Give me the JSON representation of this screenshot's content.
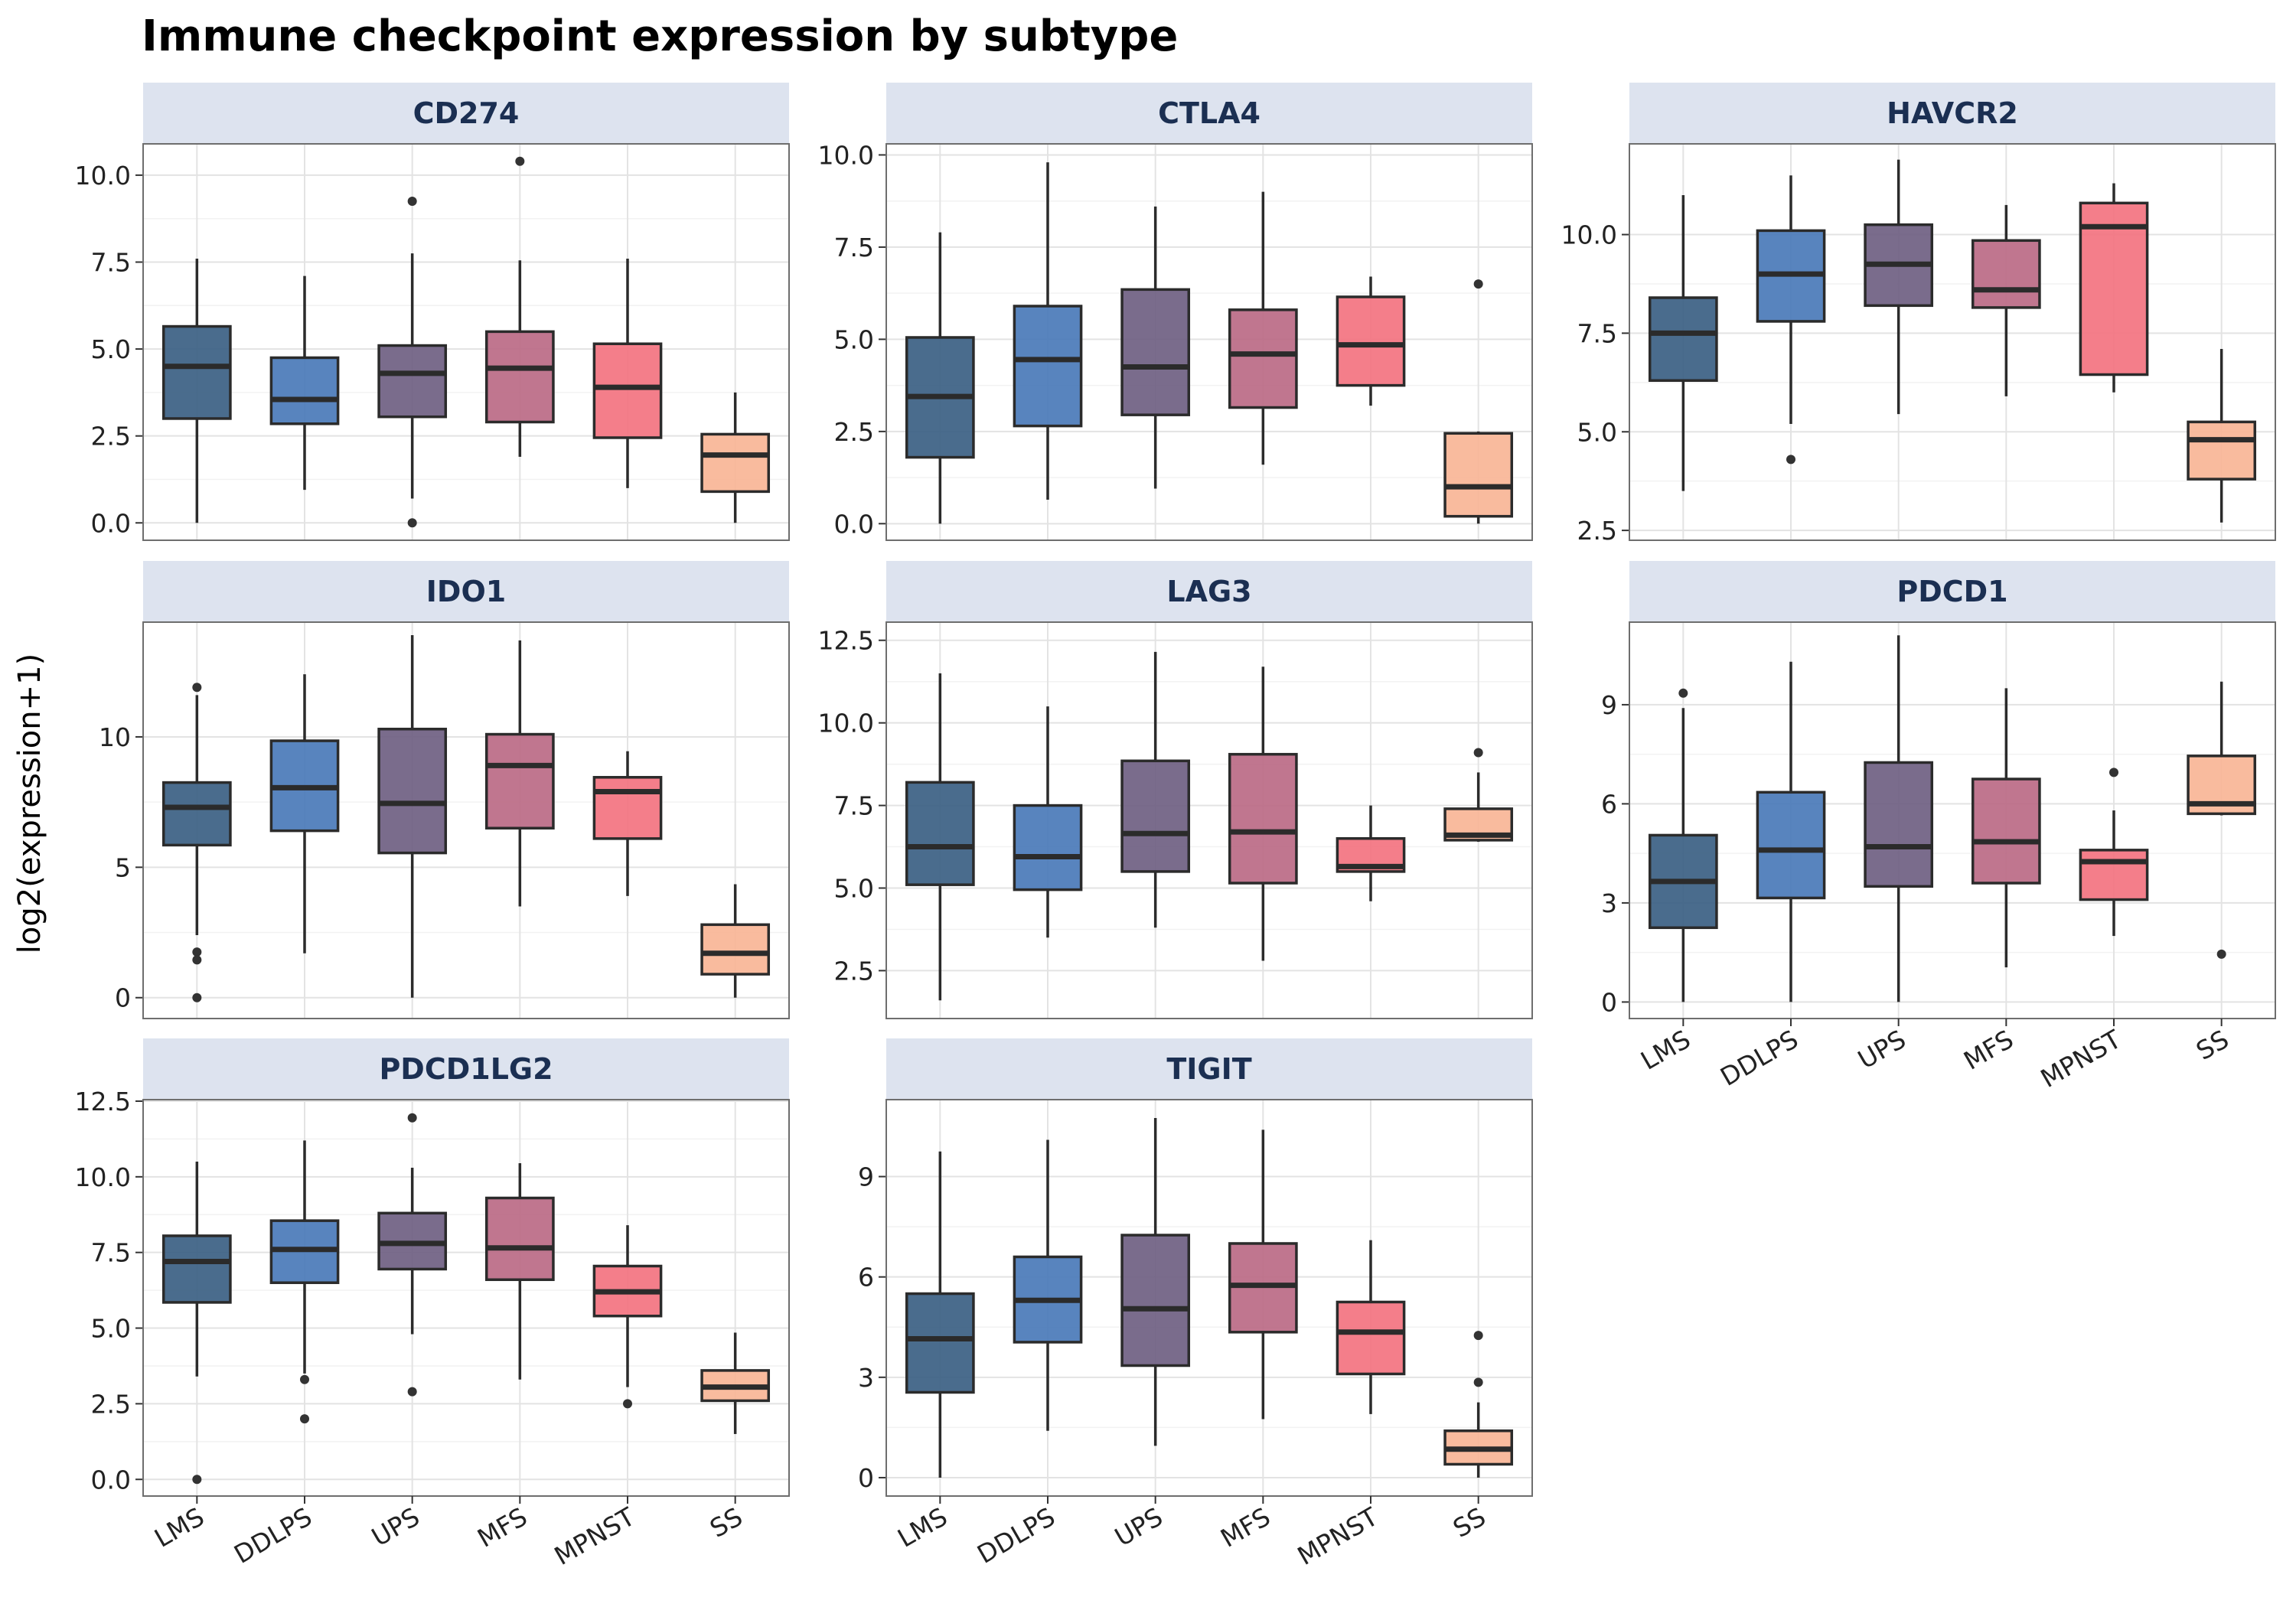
{
  "chart_data": {
    "type": "box",
    "title": "Immune checkpoint expression by subtype",
    "ylabel": "log2(expression+1)",
    "xlabel": "",
    "categories": [
      "LMS",
      "DDLPS",
      "UPS",
      "MFS",
      "MPNST",
      "SS"
    ],
    "colors": [
      "#3b5f83",
      "#4a7ab8",
      "#6f5f82",
      "#bb6a85",
      "#f37380",
      "#f9b596"
    ],
    "strip_fill": "#dde3ef",
    "grid": true,
    "legend": "none",
    "panels": [
      {
        "name": "CD274",
        "ylim": [
          -0.5,
          10.9
        ],
        "yticks": [
          0,
          2.5,
          5,
          7.5,
          10
        ],
        "ytick_labels": [
          "0.0",
          "2.5",
          "5.0",
          "7.5",
          "10.0"
        ],
        "boxes": [
          {
            "category": "LMS",
            "min": 0,
            "q1": 3.0,
            "median": 4.5,
            "q3": 5.65,
            "max": 7.6,
            "outliers": []
          },
          {
            "category": "DDLPS",
            "min": 0.95,
            "q1": 2.85,
            "median": 3.55,
            "q3": 4.75,
            "max": 7.1,
            "outliers": []
          },
          {
            "category": "UPS",
            "min": 0.7,
            "q1": 3.05,
            "median": 4.3,
            "q3": 5.1,
            "max": 7.75,
            "outliers": [
              9.25,
              0.0
            ]
          },
          {
            "category": "MFS",
            "min": 1.9,
            "q1": 2.9,
            "median": 4.45,
            "q3": 5.5,
            "max": 7.55,
            "outliers": [
              10.4
            ]
          },
          {
            "category": "MPNST",
            "min": 1.0,
            "q1": 2.45,
            "median": 3.9,
            "q3": 5.15,
            "max": 7.6,
            "outliers": []
          },
          {
            "category": "SS",
            "min": 0.0,
            "q1": 0.9,
            "median": 1.95,
            "q3": 2.55,
            "max": 3.75,
            "outliers": []
          }
        ]
      },
      {
        "name": "CTLA4",
        "ylim": [
          -0.45,
          10.3
        ],
        "yticks": [
          0,
          2.5,
          5,
          7.5,
          10
        ],
        "ytick_labels": [
          "0.0",
          "2.5",
          "5.0",
          "7.5",
          "10.0"
        ],
        "boxes": [
          {
            "category": "LMS",
            "min": 0.0,
            "q1": 1.8,
            "median": 3.45,
            "q3": 5.05,
            "max": 7.9,
            "outliers": []
          },
          {
            "category": "DDLPS",
            "min": 0.65,
            "q1": 2.65,
            "median": 4.45,
            "q3": 5.9,
            "max": 9.8,
            "outliers": []
          },
          {
            "category": "UPS",
            "min": 0.95,
            "q1": 2.95,
            "median": 4.25,
            "q3": 6.35,
            "max": 8.6,
            "outliers": []
          },
          {
            "category": "MFS",
            "min": 1.6,
            "q1": 3.15,
            "median": 4.6,
            "q3": 5.8,
            "max": 9.0,
            "outliers": []
          },
          {
            "category": "MPNST",
            "min": 3.2,
            "q1": 3.75,
            "median": 4.85,
            "q3": 6.15,
            "max": 6.7,
            "outliers": []
          },
          {
            "category": "SS",
            "min": 0.0,
            "q1": 0.2,
            "median": 1.0,
            "q3": 2.45,
            "max": 2.5,
            "outliers": [
              6.5
            ]
          }
        ]
      },
      {
        "name": "HAVCR2",
        "ylim": [
          2.25,
          12.3
        ],
        "yticks": [
          2.5,
          5,
          7.5,
          10
        ],
        "ytick_labels": [
          "2.5",
          "5.0",
          "7.5",
          "10.0"
        ],
        "boxes": [
          {
            "category": "LMS",
            "min": 3.5,
            "q1": 6.3,
            "median": 7.5,
            "q3": 8.4,
            "max": 11.0,
            "outliers": []
          },
          {
            "category": "DDLPS",
            "min": 5.2,
            "q1": 7.8,
            "median": 9.0,
            "q3": 10.1,
            "max": 11.5,
            "outliers": [
              4.3
            ]
          },
          {
            "category": "UPS",
            "min": 5.45,
            "q1": 8.2,
            "median": 9.25,
            "q3": 10.25,
            "max": 11.9,
            "outliers": []
          },
          {
            "category": "MFS",
            "min": 5.9,
            "q1": 8.15,
            "median": 8.6,
            "q3": 9.85,
            "max": 10.75,
            "outliers": []
          },
          {
            "category": "MPNST",
            "min": 6.0,
            "q1": 6.45,
            "median": 10.2,
            "q3": 10.8,
            "max": 11.3,
            "outliers": []
          },
          {
            "category": "SS",
            "min": 2.7,
            "q1": 3.8,
            "median": 4.8,
            "q3": 5.25,
            "max": 7.1,
            "outliers": []
          }
        ]
      },
      {
        "name": "IDO1",
        "ylim": [
          -0.8,
          14.4
        ],
        "yticks": [
          0,
          5,
          10
        ],
        "ytick_labels": [
          "0",
          "5",
          "10"
        ],
        "boxes": [
          {
            "category": "LMS",
            "min": 2.4,
            "q1": 5.85,
            "median": 7.3,
            "q3": 8.25,
            "max": 11.6,
            "outliers": [
              11.9,
              1.75,
              1.45,
              0.0
            ]
          },
          {
            "category": "DDLPS",
            "min": 1.7,
            "q1": 6.4,
            "median": 8.05,
            "q3": 9.85,
            "max": 12.4,
            "outliers": []
          },
          {
            "category": "UPS",
            "min": 0.0,
            "q1": 5.55,
            "median": 7.45,
            "q3": 10.3,
            "max": 13.9,
            "outliers": []
          },
          {
            "category": "MFS",
            "min": 3.5,
            "q1": 6.5,
            "median": 8.9,
            "q3": 10.1,
            "max": 13.7,
            "outliers": []
          },
          {
            "category": "MPNST",
            "min": 3.9,
            "q1": 6.1,
            "median": 7.9,
            "q3": 8.45,
            "max": 9.45,
            "outliers": []
          },
          {
            "category": "SS",
            "min": 0.0,
            "q1": 0.9,
            "median": 1.7,
            "q3": 2.8,
            "max": 4.35,
            "outliers": []
          }
        ]
      },
      {
        "name": "LAG3",
        "ylim": [
          1.05,
          13.05
        ],
        "yticks": [
          2.5,
          5,
          7.5,
          10,
          12.5
        ],
        "ytick_labels": [
          "2.5",
          "5.0",
          "7.5",
          "10.0",
          "12.5"
        ],
        "boxes": [
          {
            "category": "LMS",
            "min": 1.6,
            "q1": 5.1,
            "median": 6.25,
            "q3": 8.2,
            "max": 11.5,
            "outliers": []
          },
          {
            "category": "DDLPS",
            "min": 3.5,
            "q1": 4.95,
            "median": 5.95,
            "q3": 7.5,
            "max": 10.5,
            "outliers": []
          },
          {
            "category": "UPS",
            "min": 3.8,
            "q1": 5.5,
            "median": 6.65,
            "q3": 8.85,
            "max": 12.15,
            "outliers": []
          },
          {
            "category": "MFS",
            "min": 2.8,
            "q1": 5.15,
            "median": 6.7,
            "q3": 9.05,
            "max": 11.7,
            "outliers": []
          },
          {
            "category": "MPNST",
            "min": 4.6,
            "q1": 5.5,
            "median": 5.65,
            "q3": 6.5,
            "max": 7.5,
            "outliers": []
          },
          {
            "category": "SS",
            "min": 6.4,
            "q1": 6.45,
            "median": 6.6,
            "q3": 7.4,
            "max": 8.5,
            "outliers": [
              9.1
            ]
          }
        ]
      },
      {
        "name": "PDCD1",
        "ylim": [
          -0.5,
          11.5
        ],
        "yticks": [
          0,
          3,
          6,
          9
        ],
        "ytick_labels": [
          "0",
          "3",
          "6",
          "9"
        ],
        "boxes": [
          {
            "category": "LMS",
            "min": 0.0,
            "q1": 2.25,
            "median": 3.65,
            "q3": 5.05,
            "max": 8.9,
            "outliers": [
              9.35
            ]
          },
          {
            "category": "DDLPS",
            "min": 0.0,
            "q1": 3.15,
            "median": 4.6,
            "q3": 6.35,
            "max": 10.3,
            "outliers": []
          },
          {
            "category": "UPS",
            "min": 0.0,
            "q1": 3.5,
            "median": 4.7,
            "q3": 7.25,
            "max": 11.1,
            "outliers": []
          },
          {
            "category": "MFS",
            "min": 1.05,
            "q1": 3.6,
            "median": 4.85,
            "q3": 6.75,
            "max": 9.5,
            "outliers": []
          },
          {
            "category": "MPNST",
            "min": 2.0,
            "q1": 3.1,
            "median": 4.25,
            "q3": 4.6,
            "max": 5.8,
            "outliers": [
              6.95
            ]
          },
          {
            "category": "SS",
            "min": 5.65,
            "q1": 5.7,
            "median": 6.0,
            "q3": 7.45,
            "max": 9.7,
            "outliers": [
              1.45
            ]
          }
        ]
      },
      {
        "name": "PDCD1LG2",
        "ylim": [
          -0.55,
          12.55
        ],
        "yticks": [
          0,
          2.5,
          5,
          7.5,
          10,
          12.5
        ],
        "ytick_labels": [
          "0.0",
          "2.5",
          "5.0",
          "7.5",
          "10.0",
          "12.5"
        ],
        "boxes": [
          {
            "category": "LMS",
            "min": 3.4,
            "q1": 5.85,
            "median": 7.2,
            "q3": 8.05,
            "max": 10.5,
            "outliers": [
              0.0
            ]
          },
          {
            "category": "DDLPS",
            "min": 3.5,
            "q1": 6.5,
            "median": 7.6,
            "q3": 8.55,
            "max": 11.2,
            "outliers": [
              3.3,
              2.0
            ]
          },
          {
            "category": "UPS",
            "min": 4.8,
            "q1": 6.95,
            "median": 7.8,
            "q3": 8.8,
            "max": 10.3,
            "outliers": [
              11.95,
              2.9
            ]
          },
          {
            "category": "MFS",
            "min": 3.3,
            "q1": 6.6,
            "median": 7.65,
            "q3": 9.3,
            "max": 10.45,
            "outliers": []
          },
          {
            "category": "MPNST",
            "min": 3.05,
            "q1": 5.4,
            "median": 6.2,
            "q3": 7.05,
            "max": 8.4,
            "outliers": [
              2.5
            ]
          },
          {
            "category": "SS",
            "min": 1.5,
            "q1": 2.6,
            "median": 3.05,
            "q3": 3.6,
            "max": 4.85,
            "outliers": []
          }
        ]
      },
      {
        "name": "TIGIT",
        "ylim": [
          -0.55,
          11.3
        ],
        "yticks": [
          0,
          3,
          6,
          9
        ],
        "ytick_labels": [
          "0",
          "3",
          "6",
          "9"
        ],
        "boxes": [
          {
            "category": "LMS",
            "min": 0.0,
            "q1": 2.55,
            "median": 4.15,
            "q3": 5.5,
            "max": 9.75,
            "outliers": []
          },
          {
            "category": "DDLPS",
            "min": 1.4,
            "q1": 4.05,
            "median": 5.3,
            "q3": 6.6,
            "max": 10.1,
            "outliers": []
          },
          {
            "category": "UPS",
            "min": 0.95,
            "q1": 3.35,
            "median": 5.05,
            "q3": 7.25,
            "max": 10.75,
            "outliers": []
          },
          {
            "category": "MFS",
            "min": 1.75,
            "q1": 4.35,
            "median": 5.75,
            "q3": 7.0,
            "max": 10.4,
            "outliers": []
          },
          {
            "category": "MPNST",
            "min": 1.9,
            "q1": 3.1,
            "median": 4.35,
            "q3": 5.25,
            "max": 7.1,
            "outliers": []
          },
          {
            "category": "SS",
            "min": 0.0,
            "q1": 0.4,
            "median": 0.85,
            "q3": 1.4,
            "max": 2.25,
            "outliers": [
              4.25,
              2.85
            ]
          }
        ]
      }
    ]
  }
}
